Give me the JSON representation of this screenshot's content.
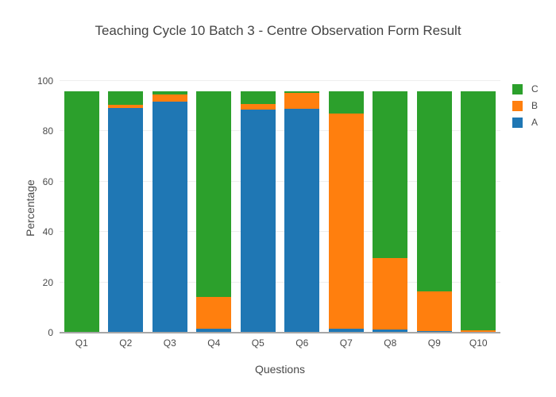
{
  "chart_data": {
    "type": "bar",
    "stacked": true,
    "title": "Teaching Cycle 10 Batch 3 - Centre Observation Form Result",
    "xlabel": "Questions",
    "ylabel": "Percentage",
    "categories": [
      "Q1",
      "Q2",
      "Q3",
      "Q4",
      "Q5",
      "Q6",
      "Q7",
      "Q8",
      "Q9",
      "Q10"
    ],
    "series": [
      {
        "name": "A",
        "color": "#1f77b4",
        "values": [
          0,
          89.4,
          91.9,
          1.6,
          88.7,
          88.9,
          1.6,
          1.4,
          0.7,
          0
        ]
      },
      {
        "name": "B",
        "color": "#ff7f0e",
        "values": [
          0,
          1.2,
          2.8,
          12.6,
          2.2,
          6.3,
          85.4,
          28.4,
          15.8,
          1.0
        ]
      },
      {
        "name": "C",
        "color": "#2ca02c",
        "values": [
          96,
          5.4,
          1.3,
          81.8,
          5.1,
          0.8,
          9.0,
          66.2,
          79.5,
          95.0
        ]
      }
    ],
    "ylim": [
      0,
      100
    ],
    "yticks": [
      0,
      20,
      40,
      60,
      80,
      100
    ],
    "grid": true,
    "legend_position": "right",
    "legend_order": [
      "C",
      "B",
      "A"
    ]
  },
  "colors": {
    "background": "#ffffff",
    "gridline": "#eeeeee",
    "axis_line": "#a6a6a6",
    "title_text": "#444444",
    "tick_text": "#4a4a4a"
  }
}
